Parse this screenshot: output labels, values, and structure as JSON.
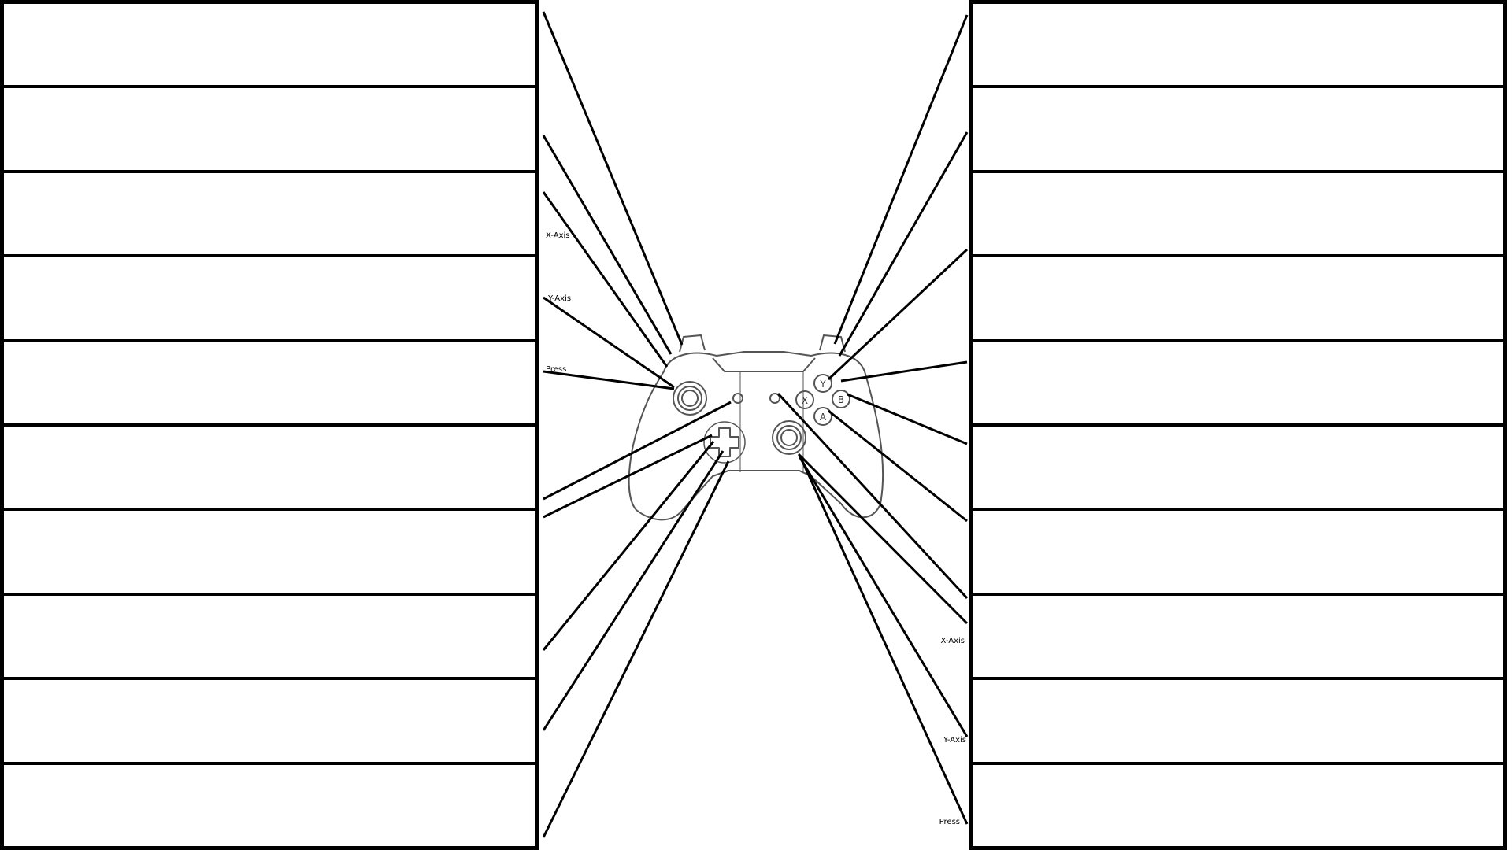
{
  "left_slots": [
    "",
    "",
    "",
    "",
    "",
    "",
    "",
    "",
    "",
    ""
  ],
  "right_slots": [
    "",
    "",
    "",
    "",
    "",
    "",
    "",
    "",
    "",
    ""
  ],
  "annotations": {
    "left_stick_x": "X-Axis",
    "left_stick_y": "Y-Axis",
    "left_stick_press": "Press",
    "right_stick_x": "X-Axis",
    "right_stick_y": "Y-Axis",
    "right_stick_press": "Press"
  },
  "face_buttons": {
    "y": "Y",
    "x": "X",
    "b": "B",
    "a": "A"
  },
  "colors": {
    "ink": "#000000",
    "controller": "#555555",
    "background": "#ffffff"
  }
}
